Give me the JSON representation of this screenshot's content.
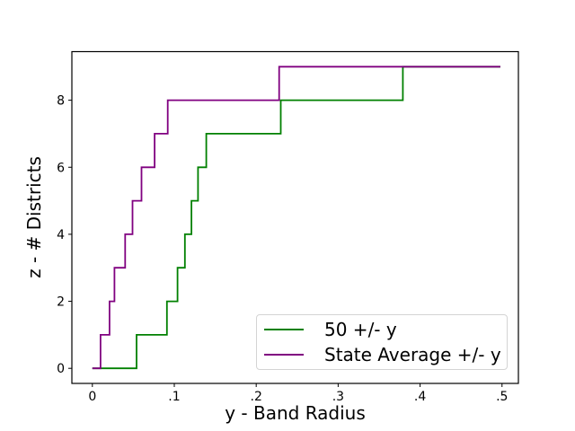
{
  "chart_data": {
    "type": "line",
    "subtype": "step-post",
    "title": "",
    "xlabel": "y - Band Radius",
    "ylabel": "z - # Districts",
    "xlim": [
      -0.025,
      0.52
    ],
    "ylim": [
      -0.45,
      9.45
    ],
    "x_ticks": [
      0,
      0.1,
      0.2,
      0.3,
      0.4,
      0.5
    ],
    "x_tick_labels": [
      "0",
      ".1",
      ".2",
      ".3",
      ".4",
      ".5"
    ],
    "y_ticks": [
      0,
      2,
      4,
      6,
      8
    ],
    "y_tick_labels": [
      "0",
      "2",
      "4",
      "6",
      "8"
    ],
    "grid": false,
    "background": "#ffffff",
    "spine_color": "#000000",
    "text_color": "#000000",
    "legend_position": "lower right",
    "series": [
      {
        "name": "50 +/- y",
        "color": "#008000",
        "step_points": [
          [
            0,
            0
          ],
          [
            0.054,
            1
          ],
          [
            0.091,
            2
          ],
          [
            0.104,
            3
          ],
          [
            0.113,
            4
          ],
          [
            0.121,
            5
          ],
          [
            0.129,
            6
          ],
          [
            0.139,
            7
          ],
          [
            0.23,
            8
          ],
          [
            0.379,
            9
          ]
        ],
        "x_end": 0.498
      },
      {
        "name": "State Average +/- y",
        "color": "#800080",
        "step_points": [
          [
            0,
            0
          ],
          [
            0.01,
            1
          ],
          [
            0.021,
            2
          ],
          [
            0.027,
            3
          ],
          [
            0.04,
            4
          ],
          [
            0.049,
            5
          ],
          [
            0.06,
            6
          ],
          [
            0.076,
            7
          ],
          [
            0.092,
            8
          ],
          [
            0.228,
            9
          ]
        ],
        "x_end": 0.498
      }
    ]
  },
  "legend": {
    "items": [
      {
        "label": "50 +/- y"
      },
      {
        "label": "State Average +/- y"
      }
    ]
  }
}
